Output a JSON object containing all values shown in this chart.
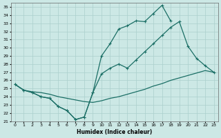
{
  "xlabel": "Humidex (Indice chaleur)",
  "xlim": [
    -0.5,
    23.5
  ],
  "ylim": [
    21,
    35.5
  ],
  "yticks": [
    21,
    22,
    23,
    24,
    25,
    26,
    27,
    28,
    29,
    30,
    31,
    32,
    33,
    34,
    35
  ],
  "xticks": [
    0,
    1,
    2,
    3,
    4,
    5,
    6,
    7,
    8,
    9,
    10,
    11,
    12,
    13,
    14,
    15,
    16,
    17,
    18,
    19,
    20,
    21,
    22,
    23
  ],
  "bg_color": "#cce8e5",
  "grid_color": "#aacfcc",
  "line_color": "#1a6e65",
  "line1_x": [
    0,
    1,
    2,
    3,
    4,
    5,
    6,
    7,
    8,
    9,
    10,
    11,
    12,
    13,
    14,
    15,
    16,
    17,
    18,
    19,
    20,
    21,
    22,
    23
  ],
  "line1_y": [
    25.5,
    24.8,
    24.5,
    24.0,
    23.8,
    22.8,
    22.3,
    21.2,
    21.5,
    24.5,
    29.0,
    30.5,
    32.3,
    32.7,
    33.3,
    33.2,
    34.2,
    35.2,
    33.3,
    null,
    null,
    null,
    null,
    null
  ],
  "line2_x": [
    0,
    1,
    2,
    3,
    4,
    5,
    6,
    7,
    8,
    9,
    10,
    11,
    12,
    13,
    14,
    15,
    16,
    17,
    18,
    19,
    20,
    21,
    22,
    23
  ],
  "line2_y": [
    25.5,
    24.8,
    24.5,
    24.0,
    23.8,
    22.8,
    22.3,
    21.2,
    21.5,
    24.5,
    26.8,
    27.5,
    28.0,
    27.5,
    28.5,
    29.5,
    30.5,
    31.5,
    32.5,
    33.2,
    30.2,
    28.7,
    27.8,
    27.0
  ],
  "line3_x": [
    0,
    1,
    2,
    3,
    4,
    5,
    6,
    7,
    8,
    9,
    10,
    11,
    12,
    13,
    14,
    15,
    16,
    17,
    18,
    19,
    20,
    21,
    22,
    23
  ],
  "line3_y": [
    25.5,
    24.8,
    24.6,
    24.5,
    24.3,
    24.0,
    23.8,
    23.6,
    23.4,
    23.3,
    23.5,
    23.8,
    24.0,
    24.3,
    24.6,
    24.9,
    25.3,
    25.6,
    26.0,
    26.3,
    26.6,
    26.9,
    27.2,
    27.0
  ]
}
